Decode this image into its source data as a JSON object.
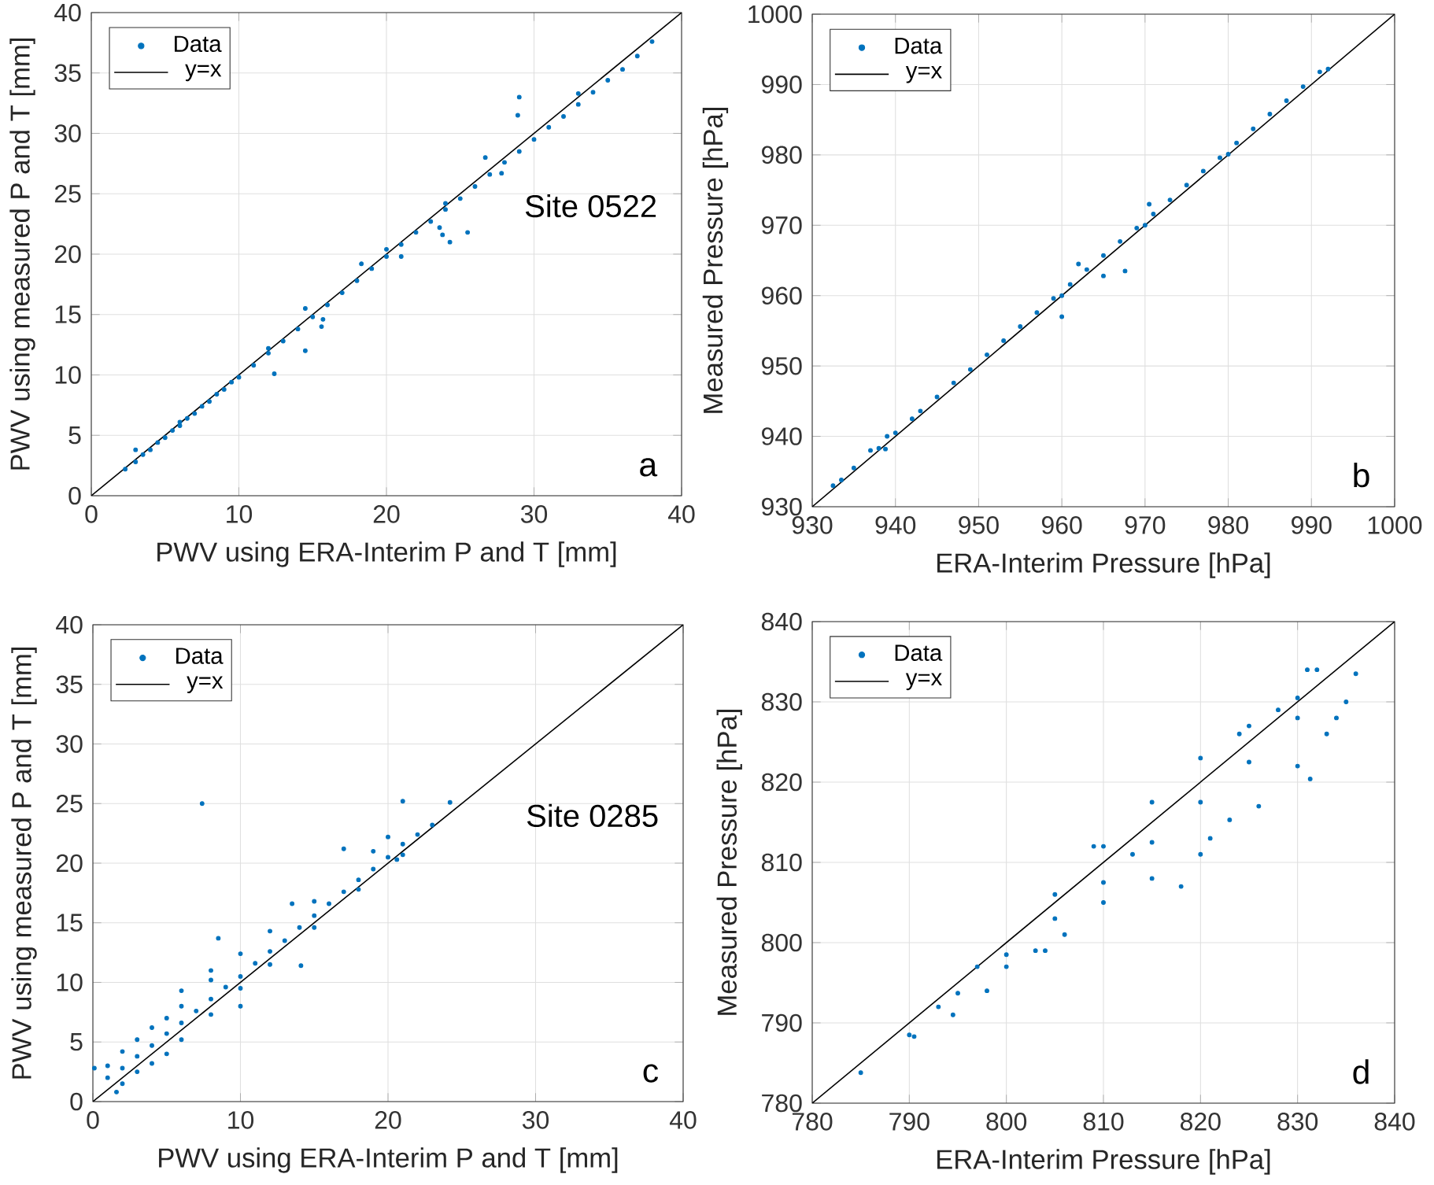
{
  "chart_data": [
    {
      "type": "scatter",
      "xlabel": "PWV using ERA-Interim P and T [mm]",
      "ylabel": "PWV using measured P and T [mm]",
      "xlim": [
        0,
        40
      ],
      "ylim": [
        0,
        40
      ],
      "xticks": [
        0,
        10,
        20,
        30,
        40
      ],
      "yticks": [
        0,
        5,
        10,
        15,
        20,
        25,
        30,
        35,
        40
      ],
      "grid": true,
      "legend": "top left",
      "annotations": [
        "Site 0522",
        "a"
      ],
      "series": [
        {
          "name": "Data",
          "color": "#0072bd",
          "marker": "circle",
          "x": [
            2.3,
            3,
            3.5,
            4,
            4.5,
            5,
            5.5,
            6,
            6.5,
            7,
            7.5,
            8,
            8.5,
            9,
            9.5,
            10,
            11,
            12,
            13,
            14,
            15,
            16,
            17,
            18,
            19,
            20,
            21,
            22,
            23,
            24,
            25,
            26,
            27,
            28,
            29,
            30,
            31,
            32,
            33,
            34,
            35,
            36,
            37,
            38,
            6,
            12,
            20,
            24,
            33,
            29,
            28.9,
            26.7,
            24.3,
            25.5,
            23.6,
            21,
            12.4,
            14.5,
            14.5,
            15.6,
            15.7,
            18.3,
            3,
            27.8,
            23.8
          ],
          "values": [
            2.2,
            2.8,
            3.4,
            3.8,
            4.4,
            4.8,
            5.4,
            5.8,
            6.4,
            6.8,
            7.4,
            7.8,
            8.4,
            8.8,
            9.4,
            9.8,
            10.8,
            11.8,
            12.8,
            13.8,
            14.8,
            15.8,
            16.8,
            17.8,
            18.8,
            19.8,
            20.8,
            21.8,
            22.7,
            23.7,
            24.6,
            25.6,
            26.6,
            27.6,
            28.5,
            29.5,
            30.5,
            31.4,
            32.4,
            33.4,
            34.4,
            35.3,
            36.4,
            37.6,
            6.1,
            12.2,
            20.4,
            24.2,
            33.3,
            33,
            31.5,
            28,
            21,
            21.8,
            22.2,
            19.8,
            10.1,
            12,
            15.5,
            14,
            14.6,
            19.2,
            3.8,
            26.7,
            21.6
          ]
        },
        {
          "name": "y=x",
          "type": "line",
          "color": "#000000",
          "marker": "none",
          "x": [
            0,
            40
          ],
          "values": [
            0,
            40
          ]
        }
      ]
    },
    {
      "type": "scatter",
      "xlabel": "ERA-Interim Pressure [hPa]",
      "ylabel": "Measured Pressure [hPa]",
      "xlim": [
        930,
        1000
      ],
      "ylim": [
        930,
        1000
      ],
      "xticks": [
        930,
        940,
        950,
        960,
        970,
        980,
        990,
        1000
      ],
      "yticks": [
        930,
        940,
        950,
        960,
        970,
        980,
        990,
        1000
      ],
      "grid": true,
      "legend": "top left",
      "annotations": [
        "b"
      ],
      "series": [
        {
          "name": "Data",
          "color": "#0072bd",
          "marker": "circle",
          "x": [
            935,
            938,
            940,
            943,
            945,
            947,
            949,
            951,
            953,
            955,
            957,
            959,
            961,
            963,
            965,
            967,
            969,
            971,
            973,
            975,
            977,
            979,
            981,
            983,
            985,
            987,
            989,
            960,
            970,
            980,
            967.6,
            960,
            965,
            970.5,
            962,
            937,
            939,
            932.5,
            933.5,
            938.8,
            942,
            991,
            992
          ],
          "values": [
            935.5,
            938.3,
            940.5,
            943.6,
            945.6,
            947.6,
            949.5,
            951.6,
            953.6,
            955.6,
            957.6,
            959.6,
            961.6,
            963.7,
            965.7,
            967.7,
            969.6,
            971.6,
            973.6,
            975.7,
            977.7,
            979.6,
            981.7,
            983.7,
            985.8,
            987.7,
            989.7,
            960,
            970,
            980.1,
            963.5,
            957,
            962.8,
            973,
            964.5,
            938,
            940,
            933,
            933.8,
            938.2,
            942.5,
            991.8,
            992.2
          ]
        },
        {
          "name": "y=x",
          "type": "line",
          "color": "#000000",
          "marker": "none",
          "x": [
            930,
            1000
          ],
          "values": [
            930,
            1000
          ]
        }
      ]
    },
    {
      "type": "scatter",
      "xlabel": "PWV using ERA-Interim P and T [mm]",
      "ylabel": "PWV using measured P and T [mm]",
      "xlim": [
        0,
        40
      ],
      "ylim": [
        0,
        40
      ],
      "xticks": [
        0,
        10,
        20,
        30,
        40
      ],
      "yticks": [
        0,
        5,
        10,
        15,
        20,
        25,
        30,
        35,
        40
      ],
      "grid": true,
      "legend": "top left",
      "annotations": [
        "Site 0285",
        "c"
      ],
      "series": [
        {
          "name": "Data",
          "color": "#0072bd",
          "marker": "circle",
          "x": [
            1,
            2,
            3,
            4,
            5,
            6,
            7,
            8,
            9,
            10,
            11,
            12,
            13,
            14,
            15,
            16,
            17,
            18,
            19,
            20,
            21,
            22,
            23,
            1,
            2,
            3,
            4,
            5,
            6,
            8,
            10,
            12,
            15,
            19,
            20,
            2,
            3,
            4,
            5,
            6,
            8,
            10,
            12,
            15,
            18,
            20.6,
            21,
            7.4,
            8.5,
            8,
            10,
            14.1,
            17,
            24.2,
            21,
            0.1,
            1.6,
            6,
            13.5
          ],
          "values": [
            2,
            2.8,
            3.8,
            4.7,
            5.7,
            6.6,
            7.6,
            8.6,
            9.6,
            10.5,
            11.6,
            12.6,
            13.5,
            14.6,
            15.6,
            16.6,
            17.6,
            18.6,
            19.5,
            20.5,
            21.6,
            22.4,
            23.2,
            3,
            4.2,
            5.2,
            6.2,
            7,
            8,
            10.2,
            12.4,
            14.3,
            16.8,
            21,
            22.2,
            1.5,
            2.5,
            3.2,
            4,
            5.2,
            7.3,
            9.5,
            11.5,
            14.6,
            17.8,
            20.3,
            20.7,
            25,
            13.7,
            11,
            8,
            11.4,
            21.2,
            25.1,
            25.2,
            2.8,
            0.8,
            9.3,
            16.6
          ]
        },
        {
          "name": "y=x",
          "type": "line",
          "color": "#000000",
          "marker": "none",
          "x": [
            0,
            40
          ],
          "values": [
            0,
            40
          ]
        }
      ]
    },
    {
      "type": "scatter",
      "xlabel": "ERA-Interim Pressure  [hPa]",
      "ylabel": "Measured Pressure [hPa]",
      "xlim": [
        780,
        840
      ],
      "ylim": [
        780,
        840
      ],
      "xticks": [
        780,
        790,
        800,
        810,
        820,
        830,
        840
      ],
      "yticks": [
        780,
        790,
        800,
        810,
        820,
        830,
        840
      ],
      "grid": true,
      "legend": "top left",
      "annotations": [
        "d"
      ],
      "series": [
        {
          "name": "Data",
          "color": "#0072bd",
          "marker": "circle",
          "x": [
            800,
            805,
            810,
            815,
            820,
            825,
            830,
            805,
            810,
            815,
            820,
            825,
            830,
            832,
            804,
            810,
            815,
            820,
            823,
            826,
            830,
            833,
            835,
            785,
            790,
            790.5,
            793,
            794.5,
            795,
            797,
            798,
            800,
            803,
            806,
            809,
            813,
            818,
            821,
            824,
            828,
            831.3,
            831,
            836,
            834
          ],
          "values": [
            798.5,
            803,
            807.5,
            812.5,
            817.5,
            822.5,
            828,
            806,
            812,
            817.5,
            823,
            827,
            830.5,
            834,
            799,
            805,
            808,
            811,
            815.3,
            817,
            822,
            826,
            830,
            783.8,
            788.5,
            788.3,
            792,
            791,
            793.7,
            797,
            794,
            797,
            799,
            801,
            812,
            811,
            807,
            813,
            826,
            829,
            820.4,
            834,
            833.5,
            828
          ]
        },
        {
          "name": "y=x",
          "type": "line",
          "color": "#000000",
          "marker": "none",
          "x": [
            780,
            840
          ],
          "values": [
            780,
            840
          ]
        }
      ]
    }
  ]
}
